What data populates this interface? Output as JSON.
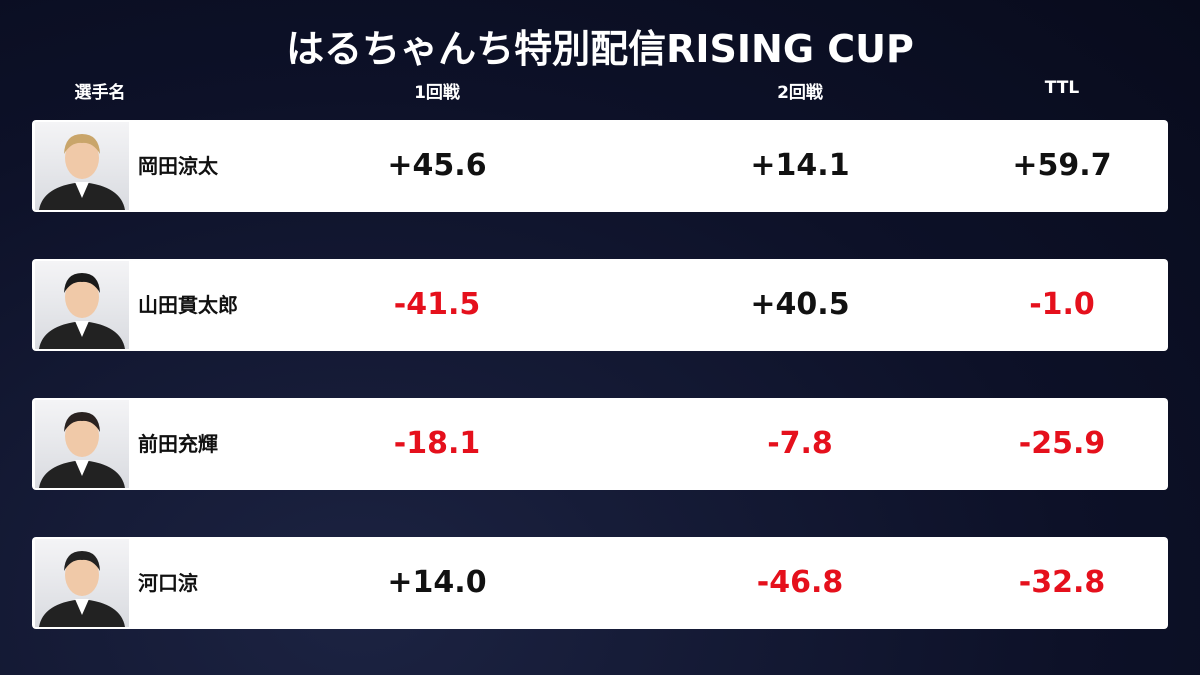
{
  "header": {
    "title": "はるちゃんち特別配信RISING CUP"
  },
  "table": {
    "columns": [
      "選手名",
      "1回戦",
      "2回戦",
      "TTL"
    ],
    "rows": [
      [
        "岡田涼太",
        "+45.6",
        "+14.1",
        "+59.7"
      ],
      [
        "山田貫太郎",
        "-41.5",
        "+40.5",
        "-1.0"
      ],
      [
        "前田充輝",
        "-18.1",
        "-7.8",
        "-25.9"
      ],
      [
        "河口涼",
        "+14.0",
        "-46.8",
        "-32.8"
      ]
    ]
  }
}
